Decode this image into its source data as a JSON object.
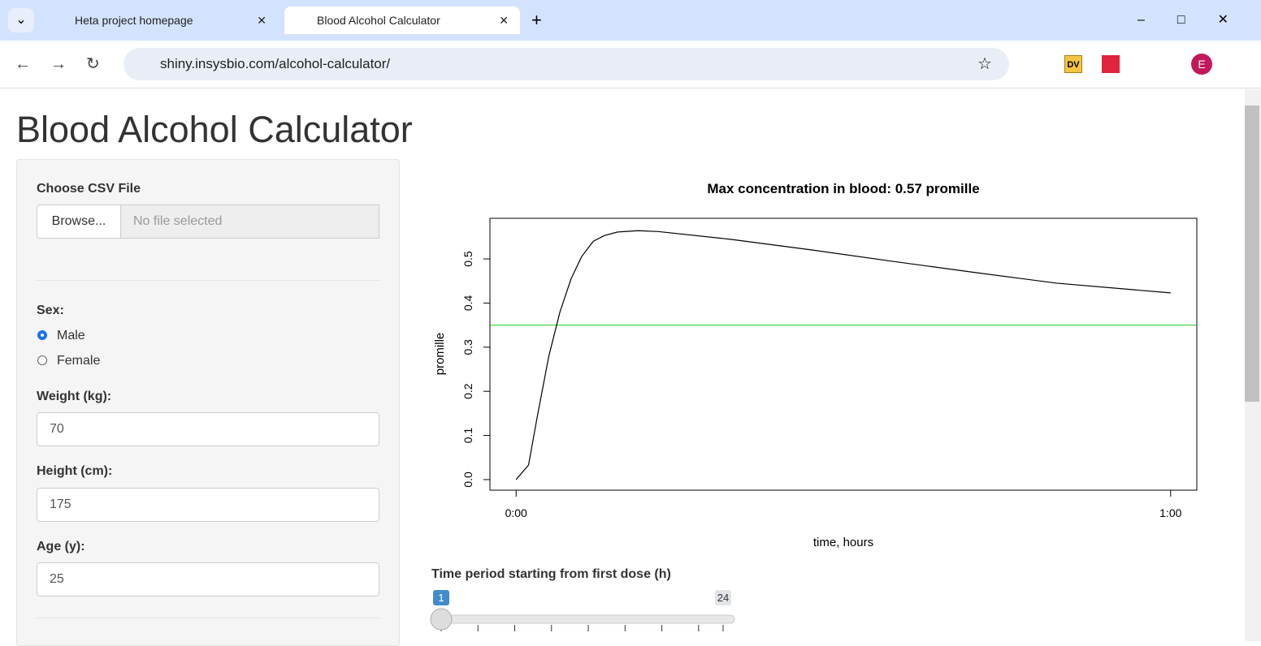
{
  "browser": {
    "tabs": [
      "Heta project homepage",
      "Blood Alcohol Calculator"
    ],
    "active_tab": 1,
    "url": "shiny.insysbio.com/alcohol-calculator/",
    "extension": "DV",
    "profile": "E"
  },
  "page": {
    "title": "Blood Alcohol Calculator"
  },
  "sidebar": {
    "file": {
      "label": "Choose CSV File",
      "button": "Browse...",
      "placeholder": "No file selected"
    },
    "sex": {
      "label": "Sex:",
      "options": [
        "Male",
        "Female"
      ],
      "selected_index": 0
    },
    "weight": {
      "label": "Weight (kg):",
      "value": 70
    },
    "height": {
      "label": "Height (cm):",
      "value": 175
    },
    "age": {
      "label": "Age (y):",
      "value": 25
    }
  },
  "chart_data": {
    "type": "line",
    "title": "Max concentration in blood:  0.57  promille",
    "x_label": "time, hours",
    "y_label": "promille",
    "x": [
      0,
      0.019,
      0.032,
      0.05,
      0.067,
      0.084,
      0.1,
      0.118,
      0.135,
      0.155,
      0.186,
      0.217,
      0.33,
      0.453,
      0.578,
      0.702,
      0.826,
      1.0
    ],
    "values": [
      0,
      0.033,
      0.14,
      0.28,
      0.38,
      0.455,
      0.505,
      0.54,
      0.553,
      0.561,
      0.564,
      0.562,
      0.544,
      0.52,
      0.494,
      0.469,
      0.445,
      0.423
    ],
    "color": "#000000",
    "hlines": [
      {
        "value": 0.35,
        "color": "#22cc22"
      }
    ],
    "xlim": [
      -0.04,
      1.04
    ],
    "xticks": [
      {
        "value": 0,
        "label": "0:00"
      },
      {
        "value": 1,
        "label": "1:00"
      }
    ],
    "ylim": [
      -0.024,
      0.592
    ],
    "yticks": [
      {
        "value": 0,
        "label": "0.0"
      },
      0.1,
      0.2,
      0.3,
      0.4,
      0.5
    ]
  },
  "slider": {
    "label": "Time period starting from first dose (h)",
    "min": 1,
    "max": 24,
    "value": 1,
    "ticks": [
      1,
      4,
      7,
      10,
      13,
      16,
      19,
      22,
      24
    ]
  }
}
